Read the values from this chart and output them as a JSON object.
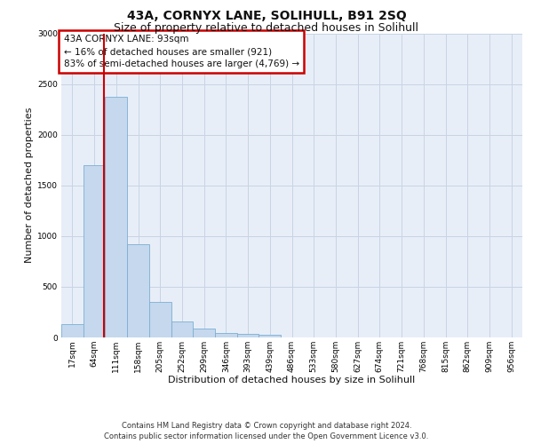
{
  "title": "43A, CORNYX LANE, SOLIHULL, B91 2SQ",
  "subtitle": "Size of property relative to detached houses in Solihull",
  "xlabel": "Distribution of detached houses by size in Solihull",
  "ylabel": "Number of detached properties",
  "categories": [
    "17sqm",
    "64sqm",
    "111sqm",
    "158sqm",
    "205sqm",
    "252sqm",
    "299sqm",
    "346sqm",
    "393sqm",
    "439sqm",
    "486sqm",
    "533sqm",
    "580sqm",
    "627sqm",
    "674sqm",
    "721sqm",
    "768sqm",
    "815sqm",
    "862sqm",
    "909sqm",
    "956sqm"
  ],
  "values": [
    130,
    1700,
    2370,
    920,
    350,
    155,
    85,
    48,
    35,
    28,
    0,
    0,
    0,
    0,
    0,
    0,
    0,
    0,
    0,
    0,
    0
  ],
  "bar_color": "#c5d8ed",
  "bar_edge_color": "#7bafd4",
  "vline_x": 1.45,
  "vline_color": "#cc0000",
  "annotation_text": "43A CORNYX LANE: 93sqm\n← 16% of detached houses are smaller (921)\n83% of semi-detached houses are larger (4,769) →",
  "annotation_box_facecolor": "#ffffff",
  "annotation_box_edgecolor": "#cc0000",
  "ylim": [
    0,
    3000
  ],
  "yticks": [
    0,
    500,
    1000,
    1500,
    2000,
    2500,
    3000
  ],
  "grid_color": "#c8d4e4",
  "plot_bg_color": "#e8eef8",
  "fig_bg_color": "#ffffff",
  "footer_line1": "Contains HM Land Registry data © Crown copyright and database right 2024.",
  "footer_line2": "Contains public sector information licensed under the Open Government Licence v3.0.",
  "title_fontsize": 10,
  "subtitle_fontsize": 9,
  "axis_label_fontsize": 8,
  "tick_fontsize": 6.5,
  "annotation_fontsize": 7.5,
  "footer_fontsize": 6
}
